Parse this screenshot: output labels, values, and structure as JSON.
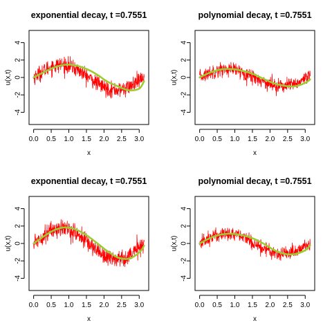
{
  "colors": {
    "noise": "#ff0000",
    "curve": "#9acd32",
    "axis": "#000000"
  },
  "chart_data": [
    {
      "type": "line",
      "title": "exponential decay, t =0.7551",
      "xlabel": "x",
      "ylabel": "u(x,t)",
      "xlim": [
        -0.13,
        3.27
      ],
      "ylim": [
        -5.4,
        5.4
      ],
      "xticks": [
        0.0,
        0.5,
        1.0,
        1.5,
        2.0,
        2.5,
        3.0
      ],
      "xtick_labels": [
        "0.0",
        "0.5",
        "1.0",
        "1.5",
        "2.0",
        "2.5",
        "3.0"
      ],
      "yticks": [
        -4,
        -2,
        0,
        2,
        4
      ],
      "ytick_labels": [
        "-4",
        "-2",
        "0",
        "2",
        "4"
      ],
      "grid": false,
      "series": [
        {
          "style": "noisy-observations",
          "color": "#ff0000",
          "x_range": [
            0,
            3.1416
          ],
          "amplitude": 1.45,
          "noise_sd": 0.45
        },
        {
          "style": "smooth-solution",
          "color": "#9acd32",
          "x": [
            0.0,
            0.3,
            0.6,
            0.9,
            1.2,
            1.5,
            1.8,
            2.1,
            2.4,
            2.7,
            3.0,
            3.14
          ],
          "y": [
            0.0,
            0.63,
            1.18,
            1.46,
            1.38,
            0.98,
            0.34,
            -0.49,
            -1.02,
            -1.47,
            -1.28,
            -0.42
          ]
        }
      ]
    },
    {
      "type": "line",
      "title": "polynomial decay, t =0.7551",
      "xlabel": "x",
      "ylabel": "u(x,t)",
      "xlim": [
        -0.13,
        3.27
      ],
      "ylim": [
        -5.4,
        5.4
      ],
      "xticks": [
        0.0,
        0.5,
        1.0,
        1.5,
        2.0,
        2.5,
        3.0
      ],
      "xtick_labels": [
        "0.0",
        "0.5",
        "1.0",
        "1.5",
        "2.0",
        "2.5",
        "3.0"
      ],
      "yticks": [
        -4,
        -2,
        0,
        2,
        4
      ],
      "ytick_labels": [
        "-4",
        "-2",
        "0",
        "2",
        "4"
      ],
      "grid": false,
      "series": [
        {
          "style": "noisy-observations",
          "color": "#ff0000",
          "x_range": [
            0,
            3.1416
          ],
          "amplitude": 0.95,
          "noise_sd": 0.4
        },
        {
          "style": "smooth-solution",
          "color": "#9acd32",
          "x": [
            0.0,
            0.3,
            0.6,
            0.9,
            1.2,
            1.5,
            1.8,
            2.1,
            2.4,
            2.7,
            3.0,
            3.14
          ],
          "y": [
            0.0,
            0.56,
            0.92,
            0.97,
            0.78,
            0.42,
            -0.12,
            -0.66,
            -0.95,
            -1.02,
            -0.63,
            -0.22
          ]
        }
      ]
    },
    {
      "type": "line",
      "title": "exponential decay, t =0.7551",
      "xlabel": "x",
      "ylabel": "u(x,t)",
      "xlim": [
        -0.13,
        3.27
      ],
      "ylim": [
        -5.4,
        5.4
      ],
      "xticks": [
        0.0,
        0.5,
        1.0,
        1.5,
        2.0,
        2.5,
        3.0
      ],
      "xtick_labels": [
        "0.0",
        "0.5",
        "1.0",
        "1.5",
        "2.0",
        "2.5",
        "3.0"
      ],
      "yticks": [
        -4,
        -2,
        0,
        2,
        4
      ],
      "ytick_labels": [
        "-4",
        "-2",
        "0",
        "2",
        "4"
      ],
      "grid": false,
      "series": [
        {
          "style": "noisy-observations",
          "color": "#ff0000",
          "x_range": [
            0,
            3.1416
          ],
          "amplitude": 1.75,
          "noise_sd": 0.5
        },
        {
          "style": "smooth-solution",
          "color": "#9acd32",
          "x": [
            0.0,
            0.3,
            0.6,
            0.9,
            1.2,
            1.5,
            1.8,
            2.1,
            2.4,
            2.7,
            3.0,
            3.14
          ],
          "y": [
            0.0,
            0.85,
            1.55,
            1.85,
            1.6,
            0.95,
            0.05,
            -0.9,
            -1.62,
            -1.75,
            -1.05,
            -0.25
          ]
        }
      ]
    },
    {
      "type": "line",
      "title": "polynomial decay, t =0.7551",
      "xlabel": "x",
      "ylabel": "u(x,t)",
      "xlim": [
        -0.13,
        3.27
      ],
      "ylim": [
        -5.4,
        5.4
      ],
      "xticks": [
        0.0,
        0.5,
        1.0,
        1.5,
        2.0,
        2.5,
        3.0
      ],
      "xtick_labels": [
        "0.0",
        "0.5",
        "1.0",
        "1.5",
        "2.0",
        "2.5",
        "3.0"
      ],
      "yticks": [
        -4,
        -2,
        0,
        2,
        4
      ],
      "ytick_labels": [
        "-4",
        "-2",
        "0",
        "2",
        "4"
      ],
      "grid": false,
      "series": [
        {
          "style": "noisy-observations",
          "color": "#ff0000",
          "x_range": [
            0,
            3.1416
          ],
          "amplitude": 1.15,
          "noise_sd": 0.4
        },
        {
          "style": "smooth-solution",
          "color": "#9acd32",
          "x": [
            0.0,
            0.3,
            0.6,
            0.9,
            1.2,
            1.5,
            1.8,
            2.1,
            2.4,
            2.7,
            3.0,
            3.14
          ],
          "y": [
            0.0,
            0.62,
            1.02,
            1.12,
            0.95,
            0.6,
            0.02,
            -0.72,
            -1.18,
            -1.22,
            -0.78,
            -0.22
          ]
        }
      ]
    }
  ]
}
